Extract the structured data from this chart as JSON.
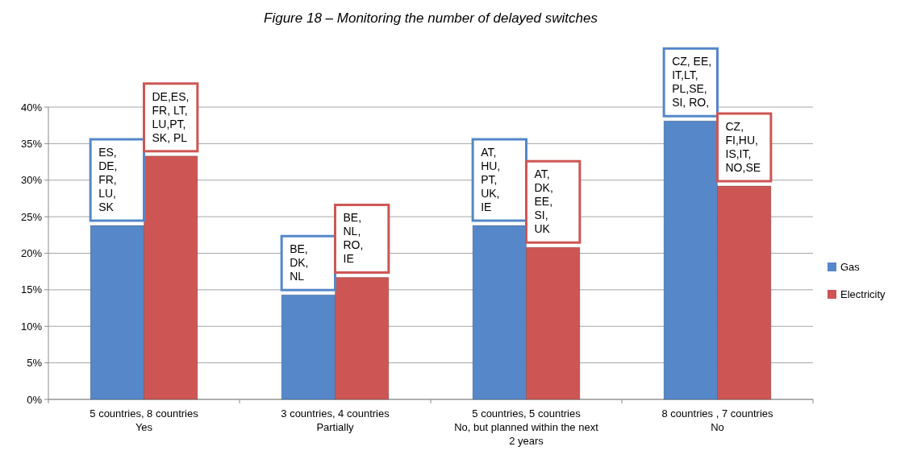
{
  "chart_data": {
    "type": "bar",
    "title": "Figure 18 – Monitoring the number of delayed switches",
    "categories": [
      "5 countries,  8 countries\nYes",
      "3 countries, 4 countries\nPartially",
      "5 countries,  5 countries\nNo, but planned within the next\n2 years",
      "8 countries  , 7 countries\nNo"
    ],
    "series": [
      {
        "name": "Gas",
        "color": "#5587c9",
        "values": [
          23.8,
          14.3,
          23.8,
          38.1
        ]
      },
      {
        "name": "Electricity",
        "color": "#cd5654",
        "values": [
          33.3,
          16.7,
          20.8,
          29.2
        ]
      }
    ],
    "ylim": [
      0,
      40
    ],
    "yticks": [
      {
        "value": 0,
        "label": "0%"
      },
      {
        "value": 5,
        "label": "5%"
      },
      {
        "value": 10,
        "label": "10%"
      },
      {
        "value": 15,
        "label": "15%"
      },
      {
        "value": 20,
        "label": "20%"
      },
      {
        "value": 25,
        "label": "25%"
      },
      {
        "value": 30,
        "label": "30%"
      },
      {
        "value": 35,
        "label": "35%"
      },
      {
        "value": 40,
        "label": "40%"
      }
    ],
    "grid": "y",
    "legend": "right",
    "annotations": [
      {
        "text": "ES,\nDE,\nFR,\nLU,\nSK",
        "x": "5 countries,  8 countries\nYes",
        "y": 23.8
      },
      {
        "text": "DE,ES,\nFR, LT,\nLU,PT,\nSK, PL",
        "x": "5 countries,  8 countries\nYes",
        "y": 33.3
      },
      {
        "text": "BE,\nDK,\nNL",
        "x": "3 countries, 4 countries\nPartially",
        "y": 14.3
      },
      {
        "text": "BE,\nNL,\nRO,\nIE",
        "x": "3 countries, 4 countries\nPartially",
        "y": 16.7
      },
      {
        "text": "AT,\nHU,\nPT,\nUK,\nIE",
        "x": "5 countries,  5 countries\nNo, but planned within the next\n2 years",
        "y": 23.8
      },
      {
        "text": "AT,\nDK,\nEE,\nSI,\nUK",
        "x": "5 countries,  5 countries\nNo, but planned within the next\n2 years",
        "y": 20.8
      },
      {
        "text": "CZ, EE,\nIT,LT,\nPL,SE,\nSI, RO,",
        "x": "8 countries  , 7 countries\nNo",
        "y": 38.1
      },
      {
        "text": "CZ,\nFI,HU,\nIS,IT,\nNO,SE",
        "x": "8 countries  , 7 countries\nNo",
        "y": 29.2
      }
    ]
  }
}
